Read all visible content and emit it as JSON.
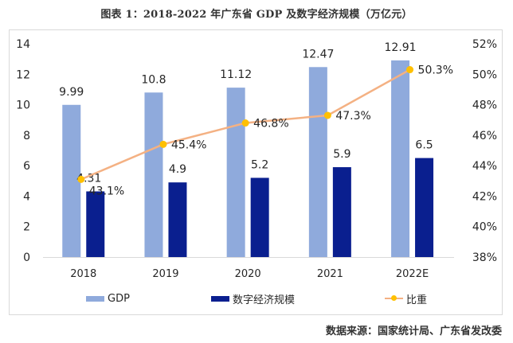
{
  "chart_data": {
    "type": "bar",
    "title": "图表 1：2018-2022 年广东省 GDP 及数字经济规模（万亿元）",
    "categories": [
      "2018",
      "2019",
      "2020",
      "2021",
      "2022E"
    ],
    "series": [
      {
        "name": "GDP",
        "kind": "bar",
        "axis": "left",
        "color": "#8faadc",
        "values": [
          9.99,
          10.8,
          11.12,
          12.47,
          12.91
        ],
        "labels": [
          "9.99",
          "10.8",
          "11.12",
          "12.47",
          "12.91"
        ]
      },
      {
        "name": "数字经济规模",
        "kind": "bar",
        "axis": "left",
        "color": "#0a1f8f",
        "values": [
          4.31,
          4.9,
          5.2,
          5.9,
          6.5
        ],
        "labels": [
          "4.31",
          "4.9",
          "5.2",
          "5.9",
          "6.5"
        ]
      },
      {
        "name": "比重",
        "kind": "line",
        "axis": "right",
        "color": "#f4b183",
        "marker_color": "#ffc000",
        "values": [
          43.1,
          45.4,
          46.8,
          47.3,
          50.3
        ],
        "labels": [
          "43.1%",
          "45.4%",
          "46.8%",
          "47.3%",
          "50.3%"
        ]
      }
    ],
    "y_left": {
      "min": 0,
      "max": 14,
      "ticks": [
        "0",
        "2",
        "4",
        "6",
        "8",
        "10",
        "12",
        "14"
      ]
    },
    "y_right": {
      "min": 38,
      "max": 52,
      "ticks": [
        "38%",
        "40%",
        "42%",
        "44%",
        "46%",
        "48%",
        "50%",
        "52%"
      ]
    },
    "xlabel": "",
    "ylabel": "",
    "grid": false,
    "legend_position": "bottom",
    "legend": [
      "GDP",
      "数字经济规模",
      "比重"
    ]
  },
  "source_note": "数据来源：国家统计局、广东省发改委"
}
